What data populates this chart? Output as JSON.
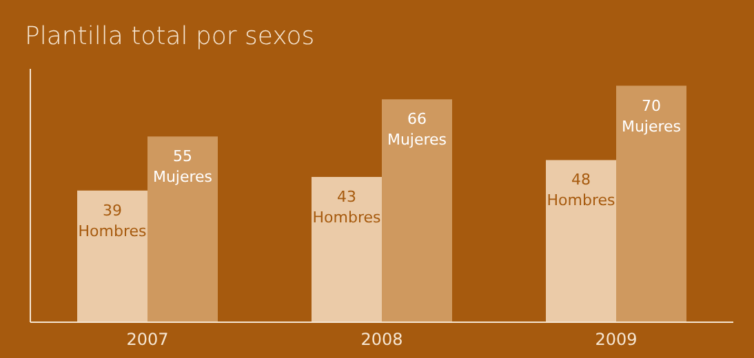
{
  "chart_data": {
    "type": "bar",
    "title": "Plantilla total por sexos",
    "categories": [
      "2007",
      "2008",
      "2009"
    ],
    "series": [
      {
        "name": "Hombres",
        "color": "#ebcba8",
        "values": [
          39,
          43,
          48
        ]
      },
      {
        "name": "Mujeres",
        "color": "#cf995f",
        "values": [
          55,
          66,
          70
        ]
      }
    ],
    "ylim": [
      0,
      75
    ],
    "tick_labels": "x",
    "data_labels": true
  }
}
